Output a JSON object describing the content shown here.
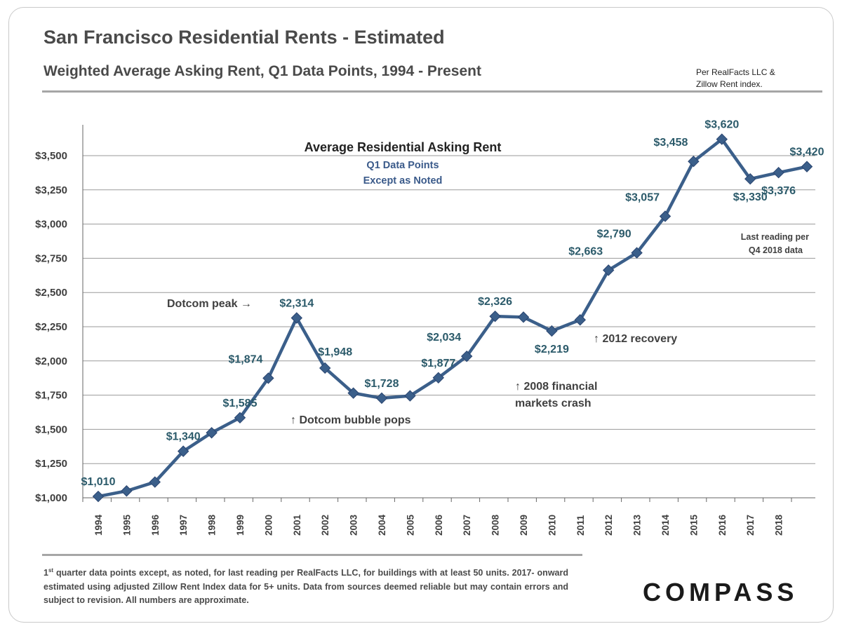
{
  "header": {
    "title": "San Francisco Residential Rents - Estimated",
    "subtitle": "Weighted Average Asking Rent, Q1 Data Points,  1994 - Present",
    "source_line1": "Per RealFacts LLC &",
    "source_line2": "Zillow Rent index."
  },
  "footer": {
    "footnote_sup": "st",
    "footnote_lead": "1",
    "footnote_text": " quarter data points except, as noted, for last reading per RealFacts LLC, for buildings with at least 50 units. 2017- onward estimated using adjusted Zillow Rent Index data for 5+ units. Data from sources deemed reliable but may contain errors and subject to revision. All numbers are approximate.",
    "logo": "COMPASS"
  },
  "chart_data": {
    "type": "line",
    "title": "Average Residential Asking Rent",
    "subtitle_lines": [
      "Q1 Data Points",
      "Except as Noted"
    ],
    "x_tick_labels": [
      "1994",
      "1995",
      "1996",
      "1997",
      "1998",
      "1999",
      "2000",
      "2001",
      "2002",
      "2003",
      "2004",
      "2005",
      "2006",
      "2007",
      "2008",
      "2009",
      "2010",
      "2011",
      "2012",
      "2013",
      "2014",
      "2015",
      "2016",
      "2017",
      "2018"
    ],
    "y_tick_labels": [
      "$1,000",
      "$1,250",
      "$1,500",
      "$1,750",
      "$2,000",
      "$2,250",
      "$2,500",
      "$2,750",
      "$3,000",
      "$3,250",
      "$3,500"
    ],
    "y_ticks": [
      1000,
      1250,
      1500,
      1750,
      2000,
      2250,
      2500,
      2750,
      3000,
      3250,
      3500
    ],
    "ylim": [
      1000,
      3500
    ],
    "grid": true,
    "values": [
      1010,
      1050,
      1115,
      1340,
      1475,
      1585,
      1874,
      2314,
      1948,
      1765,
      1728,
      1745,
      1877,
      2034,
      2326,
      2320,
      2219,
      2300,
      2663,
      2790,
      3057,
      3458,
      3620,
      3330,
      3376,
      3420
    ],
    "data_labels": [
      {
        "index": 0,
        "text": "$1,010",
        "pos": "above"
      },
      {
        "index": 3,
        "text": "$1,340",
        "pos": "above"
      },
      {
        "index": 5,
        "text": "$1,585",
        "pos": "above"
      },
      {
        "index": 6,
        "text": "$1,874",
        "pos": "above-left"
      },
      {
        "index": 7,
        "text": "$2,314",
        "pos": "above"
      },
      {
        "index": 8,
        "text": "$1,948",
        "pos": "right"
      },
      {
        "index": 10,
        "text": "$1,728",
        "pos": "above"
      },
      {
        "index": 12,
        "text": "$1,877",
        "pos": "above"
      },
      {
        "index": 13,
        "text": "$2,034",
        "pos": "above-left"
      },
      {
        "index": 14,
        "text": "$2,326",
        "pos": "above"
      },
      {
        "index": 16,
        "text": "$2,219",
        "pos": "below"
      },
      {
        "index": 18,
        "text": "$2,663",
        "pos": "above-left"
      },
      {
        "index": 19,
        "text": "$2,790",
        "pos": "above-left"
      },
      {
        "index": 20,
        "text": "$3,057",
        "pos": "above-left"
      },
      {
        "index": 21,
        "text": "$3,458",
        "pos": "above-left"
      },
      {
        "index": 22,
        "text": "$3,620",
        "pos": "above"
      },
      {
        "index": 23,
        "text": "$3,330",
        "pos": "below"
      },
      {
        "index": 24,
        "text": "$3,376",
        "pos": "below"
      },
      {
        "index": 25,
        "text": "$3,420",
        "pos": "above"
      }
    ],
    "annotations": {
      "dotcom_peak": "Dotcom peak →",
      "dotcom_pops": "↑ Dotcom bubble pops",
      "crash_line1": "↑ 2008 financial",
      "crash_line2": "markets crash",
      "recovery": "↑ 2012 recovery",
      "last_reading_line1": "Last reading per",
      "last_reading_line2": "Q4 2018 data"
    },
    "colors": {
      "line": "#3b5f8a",
      "marker": "#3b5f8a",
      "grid": "#9a9a9a",
      "label": "#2b5a6a"
    }
  }
}
